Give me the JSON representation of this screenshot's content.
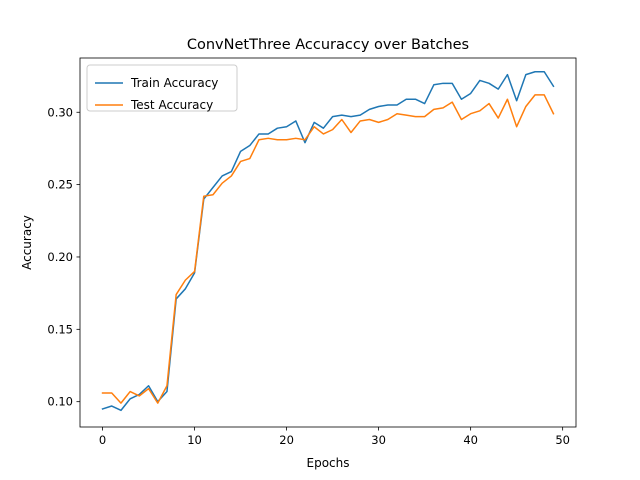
{
  "chart_data": {
    "type": "line",
    "title": "ConvNetThree Accuraccy over Batches",
    "xlabel": "Epochs",
    "ylabel": "Accuracy",
    "xlim": [
      -2.45,
      51.45
    ],
    "ylim": [
      0.0825,
      0.3375
    ],
    "xticks": [
      0,
      10,
      20,
      30,
      40,
      50
    ],
    "xtick_labels": [
      "0",
      "10",
      "20",
      "30",
      "40",
      "50"
    ],
    "yticks": [
      0.1,
      0.15,
      0.2,
      0.25,
      0.3
    ],
    "ytick_labels": [
      "0.10",
      "0.15",
      "0.20",
      "0.25",
      "0.30"
    ],
    "grid": false,
    "legend_position": "top-left",
    "x": [
      0,
      1,
      2,
      3,
      4,
      5,
      6,
      7,
      8,
      9,
      10,
      11,
      12,
      13,
      14,
      15,
      16,
      17,
      18,
      19,
      20,
      21,
      22,
      23,
      24,
      25,
      26,
      27,
      28,
      29,
      30,
      31,
      32,
      33,
      34,
      35,
      36,
      37,
      38,
      39,
      40,
      41,
      42,
      43,
      44,
      45,
      46,
      47,
      48,
      49
    ],
    "series": [
      {
        "name": "Train Accuracy",
        "color": "#1f77b4",
        "values": [
          0.095,
          0.097,
          0.094,
          0.102,
          0.105,
          0.111,
          0.1,
          0.107,
          0.171,
          0.178,
          0.189,
          0.24,
          0.248,
          0.256,
          0.259,
          0.273,
          0.277,
          0.285,
          0.285,
          0.289,
          0.29,
          0.294,
          0.279,
          0.293,
          0.289,
          0.297,
          0.298,
          0.297,
          0.298,
          0.302,
          0.304,
          0.305,
          0.305,
          0.309,
          0.309,
          0.306,
          0.319,
          0.32,
          0.32,
          0.309,
          0.313,
          0.322,
          0.32,
          0.316,
          0.326,
          0.308,
          0.326,
          0.328,
          0.328,
          0.318
        ]
      },
      {
        "name": "Test Accuracy",
        "color": "#ff7f0e",
        "values": [
          0.106,
          0.106,
          0.099,
          0.107,
          0.104,
          0.109,
          0.099,
          0.111,
          0.174,
          0.184,
          0.19,
          0.242,
          0.243,
          0.251,
          0.256,
          0.266,
          0.268,
          0.281,
          0.282,
          0.281,
          0.281,
          0.282,
          0.281,
          0.29,
          0.285,
          0.288,
          0.295,
          0.286,
          0.294,
          0.295,
          0.293,
          0.295,
          0.299,
          0.298,
          0.297,
          0.297,
          0.302,
          0.303,
          0.307,
          0.295,
          0.299,
          0.301,
          0.306,
          0.296,
          0.309,
          0.29,
          0.304,
          0.312,
          0.312,
          0.299
        ]
      }
    ]
  }
}
